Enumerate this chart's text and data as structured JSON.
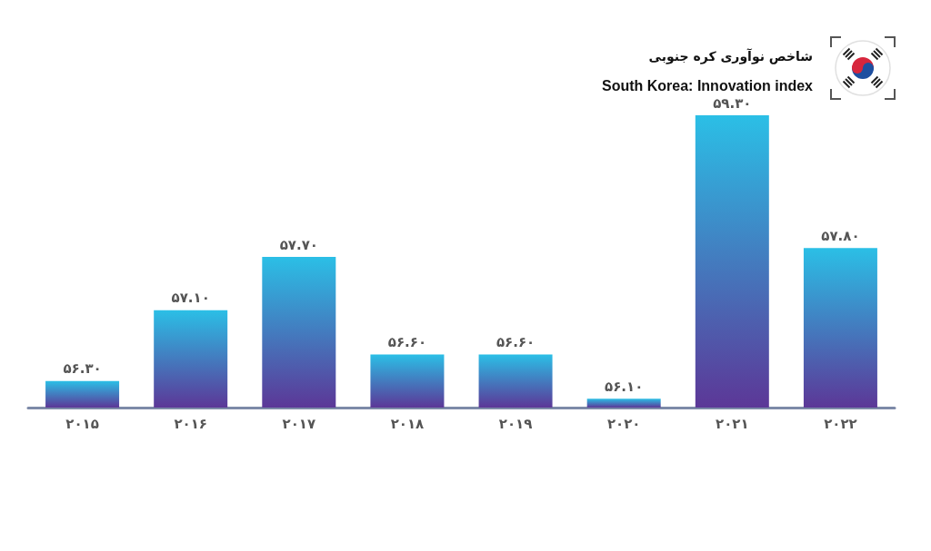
{
  "chart_data": {
    "type": "bar",
    "title": "شاخص نوآوری کره جنوبی",
    "subtitle": "South Korea: Innovation index",
    "categories": [
      "۲۰۱۵",
      "۲۰۱۶",
      "۲۰۱۷",
      "۲۰۱۸",
      "۲۰۱۹",
      "۲۰۲۰",
      "۲۰۲۱",
      "۲۰۲۲"
    ],
    "values": [
      56.3,
      57.1,
      57.7,
      56.6,
      56.6,
      56.1,
      59.3,
      57.8
    ],
    "value_labels": [
      "۵۶.۳۰",
      "۵۷.۱۰",
      "۵۷.۷۰",
      "۵۶.۶۰",
      "۵۶.۶۰",
      "۵۶.۱۰",
      "۵۹.۳۰",
      "۵۷.۸۰"
    ],
    "color": "#2bbfe6",
    "ylim": [
      56,
      59.3
    ],
    "tick_labels": "x"
  }
}
